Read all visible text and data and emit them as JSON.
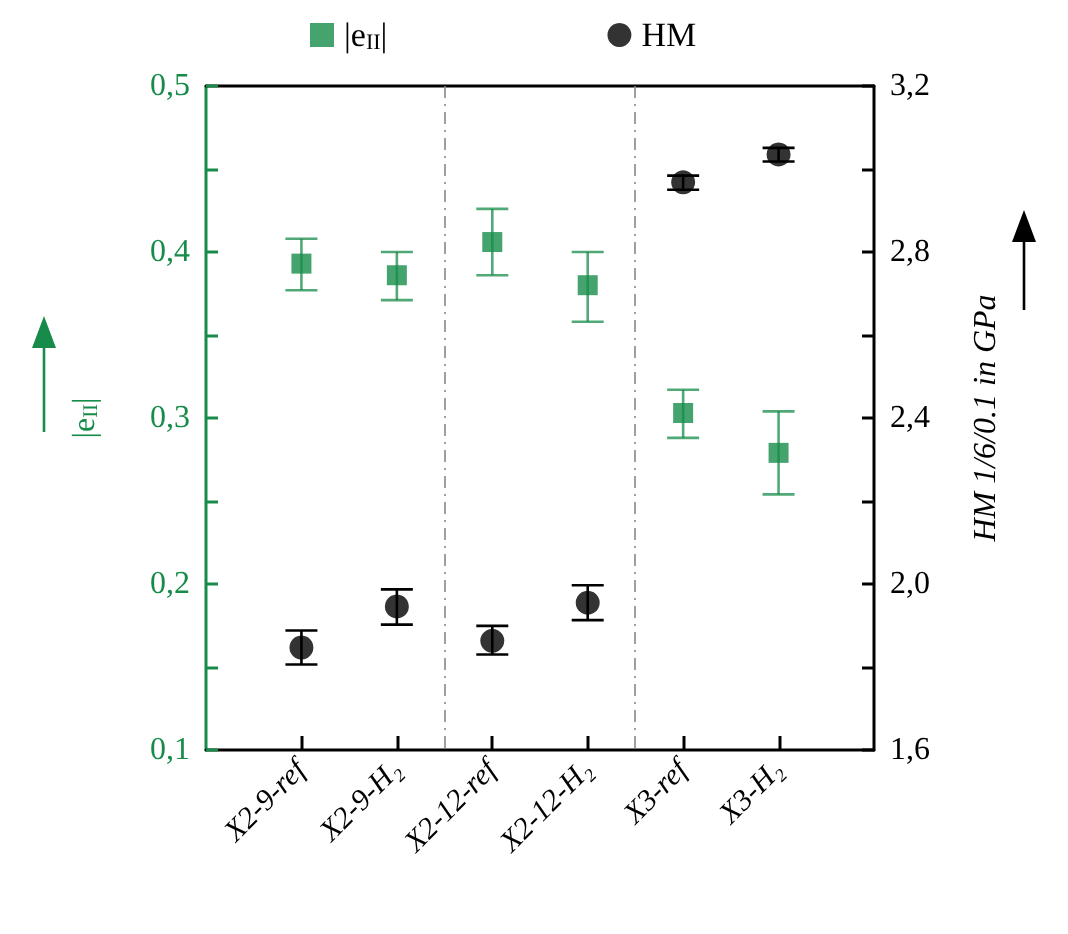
{
  "chart_data": {
    "type": "scatter",
    "categories": [
      "X2-9-ref",
      "X2-9-H₂",
      "X2-12-ref",
      "X2-12-H₂",
      "X3-ref",
      "X3-H₂"
    ],
    "ylabel": "|e$_{II}$|",
    "y2label": "HM 1/6/0.1 in GPa",
    "ylim": [
      0.1,
      0.5
    ],
    "yticks": [
      {
        "value": 0.1,
        "label": "0,1"
      },
      {
        "value": 0.15,
        "label": null
      },
      {
        "value": 0.2,
        "label": "0,2"
      },
      {
        "value": 0.25,
        "label": null
      },
      {
        "value": 0.3,
        "label": "0,3"
      },
      {
        "value": 0.35,
        "label": null
      },
      {
        "value": 0.4,
        "label": "0,4"
      },
      {
        "value": 0.45,
        "label": null
      },
      {
        "value": 0.5,
        "label": "0,5"
      }
    ],
    "y2lim": [
      1.6,
      3.2
    ],
    "y2ticks": [
      {
        "value": 1.6,
        "label": "1,6"
      },
      {
        "value": 1.8,
        "label": null
      },
      {
        "value": 2.0,
        "label": "2,0"
      },
      {
        "value": 2.2,
        "label": null
      },
      {
        "value": 2.4,
        "label": "2,4"
      },
      {
        "value": 2.6,
        "label": null
      },
      {
        "value": 2.8,
        "label": "2,8"
      },
      {
        "value": 3.0,
        "label": null
      },
      {
        "value": 3.2,
        "label": "3,2"
      }
    ],
    "series": [
      {
        "name": "|e$_{II}$|",
        "color": "#178c4a",
        "marker": "square",
        "values": [
          0.393,
          0.386,
          0.406,
          0.38,
          0.303,
          0.279
        ],
        "errors": [
          [
            0.377,
            0.408
          ],
          [
            0.371,
            0.4
          ],
          [
            0.386,
            0.426
          ],
          [
            0.358,
            0.4
          ],
          [
            0.288,
            0.317
          ],
          [
            0.254,
            0.304
          ]
        ]
      },
      {
        "name": "HM",
        "color": "#000000",
        "marker": "circle",
        "axis": "y2",
        "values": [
          1.847,
          1.946,
          1.863,
          1.955,
          2.968,
          3.035
        ],
        "errors": [
          [
            1.806,
            1.888
          ],
          [
            1.902,
            1.987
          ],
          [
            1.83,
            1.899
          ],
          [
            1.913,
            1.997
          ],
          [
            2.95,
            2.984
          ],
          [
            3.018,
            3.051
          ]
        ]
      }
    ],
    "grid": false,
    "legend": "top"
  }
}
